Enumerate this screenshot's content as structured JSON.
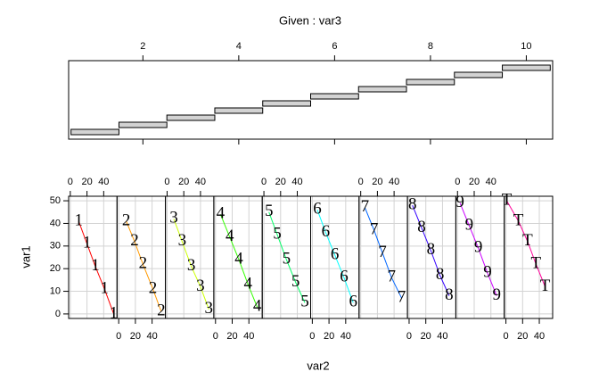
{
  "chart_data": {
    "type": "coplot",
    "given": {
      "title": "Given : var3",
      "xlim": [
        0.45,
        10.55
      ],
      "xticks": [
        2,
        4,
        6,
        8,
        10
      ],
      "intervals": [
        [
          0.5,
          1.5
        ],
        [
          1.5,
          2.5
        ],
        [
          2.5,
          3.5
        ],
        [
          3.5,
          4.5
        ],
        [
          4.5,
          5.5
        ],
        [
          5.5,
          6.5
        ],
        [
          6.5,
          7.5
        ],
        [
          7.5,
          8.5
        ],
        [
          8.5,
          9.5
        ],
        [
          9.5,
          10.5
        ]
      ]
    },
    "xlabel": "var2",
    "ylabel": "var1",
    "xlim": [
      -2,
      56
    ],
    "ylim": [
      -2,
      52
    ],
    "xticks": [
      0,
      20,
      40
    ],
    "yticks": [
      0,
      10,
      20,
      30,
      40,
      50
    ],
    "panels": [
      {
        "label": "1",
        "color": "#FF0000",
        "x": [
          10,
          20,
          30,
          41,
          52
        ],
        "y": [
          41,
          31,
          21,
          11,
          0
        ]
      },
      {
        "label": "2",
        "color": "#FF9900",
        "x": [
          9,
          19,
          29,
          41,
          51
        ],
        "y": [
          41,
          32,
          22,
          11,
          1
        ]
      },
      {
        "label": "3",
        "color": "#CCFF00",
        "x": [
          8,
          18,
          29,
          40,
          50
        ],
        "y": [
          42,
          32,
          21,
          12,
          2
        ]
      },
      {
        "label": "4",
        "color": "#33FF00",
        "x": [
          6,
          17,
          28,
          39,
          50
        ],
        "y": [
          44,
          34,
          24,
          13,
          3
        ]
      },
      {
        "label": "5",
        "color": "#00FF66",
        "x": [
          6,
          16,
          27,
          38,
          49
        ],
        "y": [
          45,
          35,
          24,
          14,
          5
        ]
      },
      {
        "label": "6",
        "color": "#00FFFF",
        "x": [
          6,
          16,
          27,
          38,
          49
        ],
        "y": [
          46,
          36,
          26,
          16,
          5
        ]
      },
      {
        "label": "7",
        "color": "#0066FF",
        "x": [
          5,
          16,
          26,
          37,
          49
        ],
        "y": [
          47,
          37,
          27,
          16,
          7
        ]
      },
      {
        "label": "8",
        "color": "#3300FF",
        "x": [
          4,
          15,
          26,
          37,
          48
        ],
        "y": [
          48,
          38,
          28,
          17,
          8
        ]
      },
      {
        "label": "9",
        "color": "#CC00FF",
        "x": [
          3,
          14,
          25,
          36,
          47
        ],
        "y": [
          49,
          39,
          29,
          18,
          8
        ]
      },
      {
        "label": "T",
        "color": "#FF0099",
        "x": [
          1,
          15,
          26,
          36,
          47
        ],
        "y": [
          50,
          41,
          32,
          22,
          12
        ]
      }
    ]
  }
}
